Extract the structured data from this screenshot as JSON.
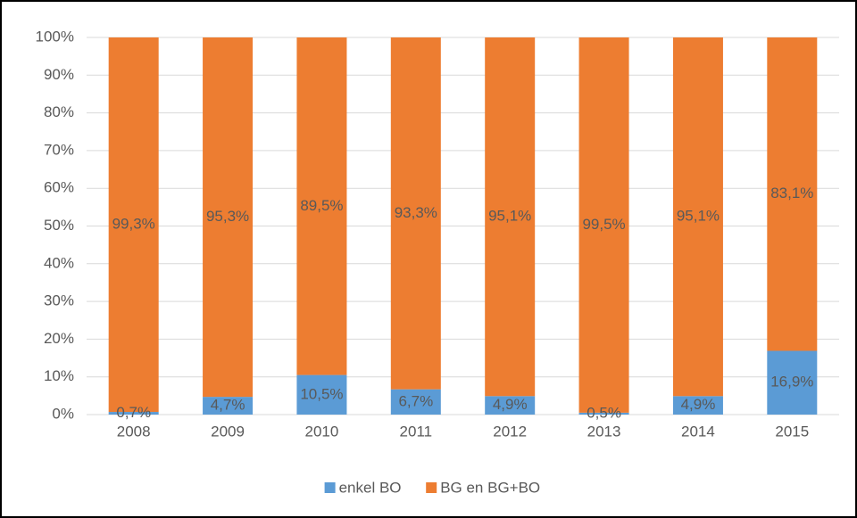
{
  "chart_data": {
    "type": "stacked_bar",
    "categories": [
      "2008",
      "2009",
      "2010",
      "2011",
      "2012",
      "2013",
      "2014",
      "2015"
    ],
    "series": [
      {
        "name": "enkel BO",
        "color": "#5b9bd5",
        "values": [
          0.7,
          4.7,
          10.5,
          6.7,
          4.9,
          0.5,
          4.9,
          16.9
        ],
        "value_labels": [
          "0,7%",
          "4,7%",
          "10,5%",
          "6,7%",
          "4,9%",
          "0,5%",
          "4,9%",
          "16,9%"
        ]
      },
      {
        "name": "BG en BG+BO",
        "color": "#ed7d31",
        "values": [
          99.3,
          95.3,
          89.5,
          93.3,
          95.1,
          99.5,
          95.1,
          83.1
        ],
        "value_labels": [
          "99,3%",
          "95,3%",
          "89,5%",
          "93,3%",
          "95,1%",
          "99,5%",
          "95,1%",
          "83,1%"
        ]
      }
    ],
    "ylim": [
      0,
      100
    ],
    "yticks": [
      {
        "value": 0,
        "label": "0%"
      },
      {
        "value": 10,
        "label": "10%"
      },
      {
        "value": 20,
        "label": "20%"
      },
      {
        "value": 30,
        "label": "30%"
      },
      {
        "value": 40,
        "label": "40%"
      },
      {
        "value": 50,
        "label": "50%"
      },
      {
        "value": 60,
        "label": "60%"
      },
      {
        "value": 70,
        "label": "70%"
      },
      {
        "value": 80,
        "label": "80%"
      },
      {
        "value": 90,
        "label": "90%"
      },
      {
        "value": 100,
        "label": "100%"
      }
    ],
    "grid": true,
    "legend": "bottom"
  }
}
